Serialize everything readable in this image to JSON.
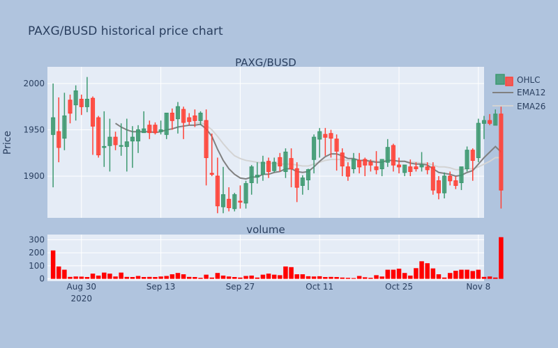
{
  "chart_data": {
    "type": "candlestick",
    "title": "PAXG/BUSD historical price chart",
    "subplots": [
      {
        "title": "PAXG/BUSD",
        "ylabel": "Price",
        "ylim": [
          1855,
          2018
        ],
        "yticks": [
          1900,
          1950,
          2000
        ]
      },
      {
        "title": "volume",
        "ylabel": "",
        "ylim": [
          -18,
          340
        ],
        "yticks": [
          0,
          100,
          200,
          300
        ]
      }
    ],
    "xticks": [
      {
        "date": "2020-08-30",
        "label": "Aug 30",
        "sub": "2020"
      },
      {
        "date": "2020-09-13",
        "label": "Sep 13",
        "sub": ""
      },
      {
        "date": "2020-09-27",
        "label": "Sep 27",
        "sub": ""
      },
      {
        "date": "2020-10-11",
        "label": "Oct 11",
        "sub": ""
      },
      {
        "date": "2020-10-25",
        "label": "Oct 25",
        "sub": ""
      },
      {
        "date": "2020-11-08",
        "label": "Nov 8",
        "sub": ""
      }
    ],
    "x_range": [
      "2020-08-24",
      "2020-11-09"
    ],
    "legend": [
      {
        "name": "OHLC",
        "color": "#3d9970"
      },
      {
        "name": "EMA12",
        "color": "#808080"
      },
      {
        "name": "EMA26",
        "color": "#d3d3d3"
      }
    ],
    "increasing_color": "#3d9970",
    "decreasing_color": "#ff4136",
    "volume_color": "#ff0000",
    "start_date": "2020-08-25",
    "ohlc": [
      [
        1945,
        2000,
        1888,
        1963
      ],
      [
        1948,
        1985,
        1915,
        1931
      ],
      [
        1941,
        1990,
        1928,
        1965
      ],
      [
        1982,
        1988,
        1957,
        1968
      ],
      [
        1977,
        1998,
        1960,
        1992
      ],
      [
        1983,
        1988,
        1966,
        1975
      ],
      [
        1975,
        2007,
        1969,
        1983
      ],
      [
        1984,
        1986,
        1923,
        1954
      ],
      [
        1963,
        1965,
        1920,
        1923
      ],
      [
        1931,
        1970,
        1910,
        1932
      ],
      [
        1933,
        1962,
        1905,
        1942
      ],
      [
        1942,
        1948,
        1928,
        1934
      ],
      [
        1933,
        1957,
        1922,
        1933
      ],
      [
        1932,
        1962,
        1905,
        1937
      ],
      [
        1938,
        1954,
        1909,
        1942
      ],
      [
        1938,
        1955,
        1925,
        1950
      ],
      [
        1947,
        1970,
        1948,
        1951
      ],
      [
        1955,
        1960,
        1940,
        1947
      ],
      [
        1955,
        1958,
        1945,
        1947
      ],
      [
        1948,
        1960,
        1945,
        1950
      ],
      [
        1945,
        1968,
        1940,
        1968
      ],
      [
        1968,
        1973,
        1950,
        1960
      ],
      [
        1962,
        1980,
        1946,
        1975
      ],
      [
        1972,
        1975,
        1940,
        1958
      ],
      [
        1963,
        1968,
        1955,
        1959
      ],
      [
        1965,
        1972,
        1953,
        1960
      ],
      [
        1960,
        1970,
        1955,
        1968
      ],
      [
        1960,
        1972,
        1890,
        1920
      ],
      [
        1903,
        1946,
        1900,
        1902
      ],
      [
        1900,
        1920,
        1860,
        1868
      ],
      [
        1867,
        1910,
        1860,
        1880
      ],
      [
        1875,
        1888,
        1862,
        1866
      ],
      [
        1865,
        1882,
        1862,
        1880
      ],
      [
        1873,
        1890,
        1865,
        1872
      ],
      [
        1871,
        1895,
        1865,
        1892
      ],
      [
        1893,
        1912,
        1880,
        1910
      ],
      [
        1899,
        1915,
        1892,
        1901
      ],
      [
        1902,
        1922,
        1895,
        1915
      ],
      [
        1916,
        1920,
        1898,
        1905
      ],
      [
        1906,
        1920,
        1904,
        1915
      ],
      [
        1920,
        1925,
        1905,
        1911
      ],
      [
        1905,
        1930,
        1898,
        1926
      ],
      [
        1919,
        1930,
        1888,
        1908
      ],
      [
        1908,
        1915,
        1872,
        1888
      ],
      [
        1890,
        1901,
        1880,
        1898
      ],
      [
        1896,
        1908,
        1885,
        1907
      ],
      [
        1918,
        1945,
        1903,
        1942
      ],
      [
        1940,
        1952,
        1920,
        1948
      ],
      [
        1945,
        1952,
        1922,
        1942
      ],
      [
        1946,
        1950,
        1920,
        1941
      ],
      [
        1940,
        1945,
        1906,
        1927
      ],
      [
        1925,
        1930,
        1900,
        1911
      ],
      [
        1910,
        1915,
        1895,
        1900
      ],
      [
        1908,
        1925,
        1903,
        1918
      ],
      [
        1917,
        1925,
        1903,
        1910
      ],
      [
        1918,
        1920,
        1900,
        1912
      ],
      [
        1915,
        1918,
        1905,
        1912
      ],
      [
        1910,
        1927,
        1902,
        1907
      ],
      [
        1908,
        1917,
        1900,
        1918
      ],
      [
        1915,
        1940,
        1910,
        1931
      ],
      [
        1933,
        1935,
        1905,
        1912
      ],
      [
        1912,
        1920,
        1903,
        1910
      ],
      [
        1904,
        1912,
        1900,
        1912
      ],
      [
        1910,
        1918,
        1900,
        1905
      ],
      [
        1910,
        1915,
        1905,
        1908
      ],
      [
        1910,
        1926,
        1905,
        1912
      ],
      [
        1910,
        1915,
        1902,
        1907
      ],
      [
        1910,
        1915,
        1880,
        1885
      ],
      [
        1895,
        1900,
        1875,
        1882
      ],
      [
        1882,
        1904,
        1876,
        1900
      ],
      [
        1900,
        1905,
        1890,
        1895
      ],
      [
        1895,
        1900,
        1886,
        1890
      ],
      [
        1893,
        1910,
        1885,
        1910
      ],
      [
        1908,
        1932,
        1905,
        1928
      ],
      [
        1928,
        1930,
        1895,
        1917
      ],
      [
        1920,
        1962,
        1915,
        1957
      ],
      [
        1957,
        1965,
        1940,
        1960
      ],
      [
        1960,
        1967,
        1955,
        1957
      ],
      [
        1955,
        1972,
        1955,
        1967
      ],
      [
        1967,
        1975,
        1865,
        1885
      ]
    ],
    "volume": [
      218,
      95,
      70,
      15,
      18,
      17,
      14,
      40,
      25,
      48,
      40,
      18,
      48,
      15,
      14,
      22,
      14,
      15,
      14,
      18,
      22,
      35,
      45,
      35,
      15,
      14,
      8,
      32,
      10,
      45,
      25,
      18,
      14,
      10,
      22,
      25,
      10,
      32,
      40,
      32,
      28,
      95,
      90,
      35,
      35,
      20,
      18,
      20,
      14,
      15,
      14,
      10,
      8,
      6,
      22,
      12,
      8,
      28,
      18,
      70,
      70,
      78,
      45,
      25,
      82,
      135,
      120,
      80,
      35,
      10,
      45,
      62,
      70,
      70,
      60,
      70,
      15,
      18,
      10,
      320
    ],
    "ema12": [
      null,
      null,
      null,
      null,
      null,
      null,
      null,
      null,
      null,
      null,
      null,
      1957,
      1953,
      1950,
      1948,
      1948,
      1948,
      1948,
      1947,
      1948,
      1950,
      1951,
      1953,
      1954,
      1955,
      1955,
      1956,
      1951,
      1943,
      1929,
      1917,
      1908,
      1902,
      1898,
      1897,
      1899,
      1899,
      1902,
      1902,
      1904,
      1905,
      1908,
      1908,
      1905,
      1904,
      1905,
      1910,
      1916,
      1921,
      1924,
      1924,
      1922,
      1919,
      1919,
      1917,
      1917,
      1916,
      1915,
      1915,
      1917,
      1917,
      1916,
      1916,
      1914,
      1913,
      1913,
      1912,
      1908,
      1904,
      1903,
      1902,
      1900,
      1901,
      1904,
      1906,
      1913,
      1920,
      1926,
      1932,
      1926
    ],
    "ema26": [
      null,
      null,
      null,
      null,
      null,
      null,
      null,
      null,
      null,
      null,
      null,
      null,
      null,
      null,
      null,
      null,
      null,
      null,
      null,
      null,
      null,
      null,
      null,
      null,
      null,
      1957,
      1958,
      1955,
      1950,
      1943,
      1935,
      1928,
      1922,
      1919,
      1917,
      1916,
      1915,
      1914,
      1914,
      1914,
      1913,
      1913,
      1913,
      1912,
      1911,
      1911,
      1913,
      1915,
      1917,
      1918,
      1918,
      1918,
      1917,
      1917,
      1917,
      1917,
      1917,
      1916,
      1916,
      1917,
      1917,
      1916,
      1916,
      1915,
      1915,
      1914,
      1914,
      1912,
      1910,
      1910,
      1909,
      1907,
      1907,
      1908,
      1908,
      1910,
      1913,
      1916,
      1920,
      1920
    ]
  }
}
